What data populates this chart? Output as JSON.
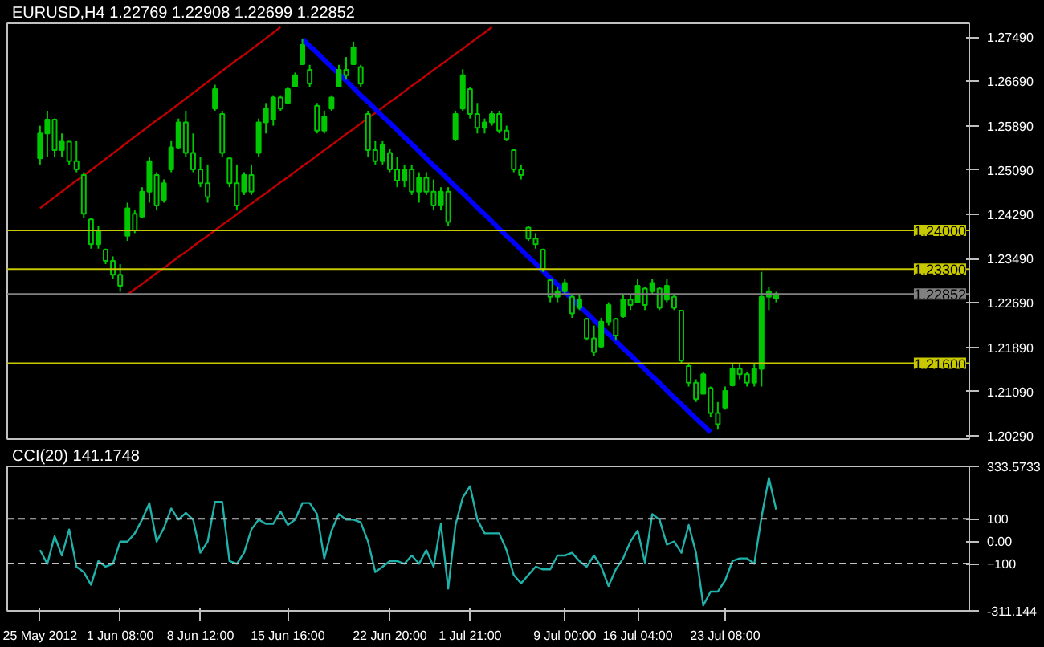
{
  "chart_data": [
    {
      "type": "candlestick",
      "title": "EURUSD,H4 1.22769 1.22908 1.22699 1.22852",
      "ylim": [
        1.2023,
        1.2774
      ],
      "tick_labels": "y",
      "grid": false,
      "categories": [
        null,
        null,
        null,
        null,
        null,
        null,
        null,
        null,
        null,
        null,
        null,
        null,
        null,
        null,
        null,
        null,
        null,
        null,
        null,
        null,
        null,
        null,
        null,
        null,
        null,
        null,
        null,
        null,
        null,
        null,
        null,
        null,
        null,
        null,
        null,
        null,
        null,
        null,
        null,
        null,
        null,
        null,
        null,
        null,
        null,
        null,
        null,
        null,
        null,
        null,
        null,
        null,
        null,
        null,
        null,
        null,
        null,
        null,
        null,
        null,
        null,
        null,
        null,
        null,
        null,
        null,
        null,
        null,
        null,
        null,
        null,
        null,
        null,
        null,
        null,
        null,
        null,
        null,
        null,
        null,
        null,
        null,
        null,
        null,
        null,
        null,
        null,
        null,
        null,
        null,
        null,
        null,
        null,
        null,
        null,
        null,
        null,
        null,
        null,
        null,
        null,
        null,
        null,
        null,
        null,
        null,
        null,
        null,
        null,
        null,
        null,
        null,
        null,
        null,
        null,
        null,
        null,
        null,
        null,
        null,
        null,
        null,
        null,
        null,
        null,
        null,
        null,
        null,
        null,
        null,
        null,
        null
      ],
      "yticks": [
        {
          "value": 1.2029,
          "label": "1.20290"
        },
        {
          "value": 1.2109,
          "label": "1.21090"
        },
        {
          "value": 1.2189,
          "label": "1.21890"
        },
        {
          "value": 1.2269,
          "label": "1.22690"
        },
        {
          "value": 1.2349,
          "label": "1.23490"
        },
        {
          "value": 1.2429,
          "label": "1.24290"
        },
        {
          "value": 1.2509,
          "label": "1.25090"
        },
        {
          "value": 1.2589,
          "label": "1.25890"
        },
        {
          "value": 1.2669,
          "label": "1.26690"
        },
        {
          "value": 1.2749,
          "label": "1.27490"
        }
      ],
      "ref_lines": [
        {
          "axis": "y",
          "value": 1.24,
          "label": "1.24000",
          "color": "#c8c800",
          "line_style": "solid"
        },
        {
          "axis": "y",
          "value": 1.233,
          "label": "1.23300",
          "color": "#c8c800",
          "line_style": "solid"
        },
        {
          "axis": "y",
          "value": 1.216,
          "label": "1.21600",
          "color": "#c8c800",
          "line_style": "solid"
        },
        {
          "axis": "y",
          "value": 1.22852,
          "label": "1.22852",
          "color": "#808080",
          "line_style": "solid"
        }
      ],
      "series": [
        {
          "type": "candlestick",
          "color": "#00c800",
          "ohlc": [
            null,
            null,
            null,
            null,
            [
              1.253,
              1.2589,
              1.2519,
              1.2575
            ],
            [
              1.2575,
              1.2616,
              1.2533,
              1.26
            ],
            [
              1.26,
              1.2602,
              1.2533,
              1.2545
            ],
            [
              1.2545,
              1.2575,
              1.2533,
              1.256
            ],
            [
              1.256,
              1.2561,
              1.2519,
              1.2525
            ],
            [
              1.2525,
              1.2561,
              1.2505,
              1.251
            ],
            [
              1.25,
              1.2505,
              1.2422,
              1.243
            ],
            [
              1.242,
              1.2422,
              1.2367,
              1.2375
            ],
            [
              1.2375,
              1.2408,
              1.2367,
              1.24
            ],
            [
              1.2365,
              1.2367,
              1.2339,
              1.2345
            ],
            [
              1.2345,
              1.2353,
              1.2312,
              1.232
            ],
            [
              1.232,
              1.2339,
              1.2289,
              1.23
            ],
            [
              1.239,
              1.245,
              1.2381,
              1.244
            ],
            [
              1.243,
              1.2436,
              1.2395,
              1.24
            ],
            [
              1.2425,
              1.2478,
              1.2422,
              1.247
            ],
            [
              1.247,
              1.2533,
              1.245,
              1.2525
            ],
            [
              1.25,
              1.2505,
              1.2436,
              1.2445
            ],
            [
              1.2455,
              1.2492,
              1.245,
              1.2485
            ],
            [
              1.251,
              1.2561,
              1.2505,
              1.255
            ],
            [
              1.255,
              1.2602,
              1.2547,
              1.2595
            ],
            [
              1.2595,
              1.2616,
              1.2533,
              1.254
            ],
            [
              1.254,
              1.2575,
              1.2505,
              1.251
            ],
            [
              1.251,
              1.2533,
              1.2478,
              1.2485
            ],
            [
              1.2485,
              1.2519,
              1.245,
              1.246
            ],
            [
              1.262,
              1.2663,
              1.2616,
              1.2655
            ],
            [
              1.261,
              1.2616,
              1.2533,
              1.254
            ],
            [
              1.253,
              1.2533,
              1.2478,
              1.2485
            ],
            [
              1.2485,
              1.2519,
              1.2436,
              1.2445
            ],
            [
              1.247,
              1.2505,
              1.2464,
              1.25
            ],
            [
              1.25,
              1.2519,
              1.2464,
              1.247
            ],
            [
              1.254,
              1.2602,
              1.2533,
              1.2595
            ],
            [
              1.2595,
              1.263,
              1.2575,
              1.262
            ],
            [
              1.26,
              1.2644,
              1.2589,
              1.264
            ],
            [
              1.264,
              1.2644,
              1.2616,
              1.262
            ],
            [
              1.263,
              1.2658,
              1.263,
              1.2655
            ],
            [
              1.266,
              1.2685,
              1.2658,
              1.268
            ],
            [
              1.27,
              1.2746,
              1.2699,
              1.2735
            ],
            [
              1.269,
              1.2699,
              1.2658,
              1.2665
            ],
            [
              1.2625,
              1.263,
              1.2575,
              1.258
            ],
            [
              1.258,
              1.2616,
              1.2575,
              1.2605
            ],
            [
              1.262,
              1.2644,
              1.2616,
              1.264
            ],
            [
              1.266,
              1.2699,
              1.2658,
              1.269
            ],
            [
              1.269,
              1.2713,
              1.2672,
              1.268
            ],
            [
              1.27,
              1.2741,
              1.2699,
              1.273
            ],
            [
              1.2695,
              1.2699,
              1.2658,
              1.2665
            ],
            [
              1.261,
              1.2616,
              1.2533,
              1.2545
            ],
            [
              1.2545,
              1.2561,
              1.2519,
              1.2525
            ],
            [
              1.2525,
              1.2561,
              1.2519,
              1.2555
            ],
            [
              1.254,
              1.2547,
              1.2505,
              1.251
            ],
            [
              1.251,
              1.2533,
              1.2478,
              1.249
            ],
            [
              1.249,
              1.2519,
              1.2478,
              1.251
            ],
            [
              1.251,
              1.2519,
              1.2464,
              1.247
            ],
            [
              1.247,
              1.2505,
              1.245,
              1.2495
            ],
            [
              1.2495,
              1.2505,
              1.2464,
              1.247
            ],
            [
              1.247,
              1.2492,
              1.2436,
              1.2445
            ],
            [
              1.2445,
              1.2478,
              1.2436,
              1.247
            ],
            [
              1.247,
              1.2478,
              1.2408,
              1.2415
            ],
            [
              1.2565,
              1.2616,
              1.2561,
              1.261
            ],
            [
              1.262,
              1.2691,
              1.2616,
              1.268
            ],
            [
              1.2655,
              1.2658,
              1.2602,
              1.261
            ],
            [
              1.261,
              1.263,
              1.2575,
              1.2585
            ],
            [
              1.2585,
              1.2602,
              1.2575,
              1.2595
            ],
            [
              1.2595,
              1.2616,
              1.2589,
              1.261
            ],
            [
              1.261,
              1.2616,
              1.2575,
              1.258
            ],
            [
              1.258,
              1.2589,
              1.2561,
              1.2565
            ],
            [
              1.2545,
              1.2547,
              1.2505,
              1.251
            ],
            [
              1.251,
              1.2519,
              1.2492,
              1.25
            ],
            [
              1.2405,
              1.2408,
              1.2381,
              1.2385
            ],
            [
              1.2385,
              1.2395,
              1.2367,
              1.2375
            ],
            [
              1.2365,
              1.2367,
              1.2325,
              1.233
            ],
            [
              1.231,
              1.2312,
              1.227,
              1.228
            ],
            [
              1.228,
              1.2298,
              1.227,
              1.229
            ],
            [
              1.229,
              1.2312,
              1.2284,
              1.2305
            ],
            [
              1.228,
              1.2284,
              1.2242,
              1.225
            ],
            [
              1.226,
              1.2284,
              1.2256,
              1.2275
            ],
            [
              1.224,
              1.2242,
              1.2201,
              1.2205
            ],
            [
              1.2205,
              1.2228,
              1.2173,
              1.218
            ],
            [
              1.219,
              1.2242,
              1.2187,
              1.2235
            ],
            [
              1.2235,
              1.227,
              1.2228,
              1.2265
            ],
            [
              1.224,
              1.2242,
              1.2201,
              1.221
            ],
            [
              1.2245,
              1.2284,
              1.2242,
              1.2275
            ],
            [
              1.2275,
              1.2284,
              1.2256,
              1.2265
            ],
            [
              1.227,
              1.2312,
              1.227,
              1.23
            ],
            [
              1.2295,
              1.2298,
              1.2256,
              1.2265
            ],
            [
              1.229,
              1.2312,
              1.2284,
              1.2305
            ],
            [
              1.2295,
              1.2298,
              1.2256,
              1.226
            ],
            [
              1.2275,
              1.2312,
              1.227,
              1.23
            ],
            [
              1.228,
              1.2284,
              1.2256,
              1.226
            ],
            [
              1.2255,
              1.2256,
              1.2159,
              1.2165
            ],
            [
              1.2155,
              1.2159,
              1.2118,
              1.2125
            ],
            [
              1.2125,
              1.2131,
              1.209,
              1.2095
            ],
            [
              1.2105,
              1.2145,
              1.2104,
              1.214
            ],
            [
              1.2115,
              1.2118,
              1.2062,
              1.207
            ],
            [
              1.207,
              1.209,
              1.204,
              1.205
            ],
            [
              1.208,
              1.2118,
              1.2076,
              1.211
            ],
            [
              1.212,
              1.2159,
              1.2118,
              1.215
            ],
            [
              1.215,
              1.2159,
              1.2131,
              1.214
            ],
            [
              1.214,
              1.2145,
              1.2118,
              1.2125
            ],
            [
              1.2125,
              1.2159,
              1.2118,
              1.215
            ],
            [
              1.215,
              1.2325,
              1.2118,
              1.228
            ],
            [
              1.228,
              1.2298,
              1.2256,
              1.229
            ],
            [
              1.2277,
              1.2289,
              1.227,
              1.2285
            ],
            null,
            null,
            null,
            null,
            null,
            null,
            null,
            null,
            null,
            null,
            null,
            null,
            null,
            null,
            null,
            null,
            null,
            null,
            null,
            null,
            null,
            null,
            null,
            null,
            null,
            null
          ]
        },
        {
          "type": "line",
          "color": "#c00000",
          "line_style": "solid",
          "values": [
            null,
            null,
            null,
            null,
            1.244,
            1.245,
            1.246,
            1.247,
            1.248,
            1.249,
            1.2499,
            1.2509,
            1.2519,
            1.2529,
            1.2539,
            1.2549,
            1.2559,
            1.2569,
            1.2579,
            1.2589,
            1.2599,
            1.2608,
            1.2618,
            1.2628,
            1.2638,
            1.2648,
            1.2658,
            1.2668,
            1.2678,
            1.2688,
            1.2698,
            1.2708,
            1.2717,
            1.2727,
            1.2737,
            1.2747,
            1.2757,
            1.2767,
            null,
            null,
            null,
            null,
            null,
            null,
            null,
            null,
            null,
            null,
            null,
            null,
            null,
            null,
            null,
            null,
            null,
            null,
            null,
            null,
            null,
            null,
            null,
            null,
            null,
            null,
            null,
            null,
            null,
            null,
            null,
            null,
            null,
            null,
            null,
            null,
            null,
            null,
            null,
            null,
            null,
            null,
            null,
            null,
            null,
            null,
            null,
            null,
            null,
            null,
            null,
            null,
            null,
            null,
            null,
            null,
            null,
            null,
            null,
            null,
            null,
            null,
            null,
            null,
            null,
            null,
            null,
            null,
            null,
            null,
            null,
            null,
            null,
            null,
            null,
            null,
            null,
            null,
            null,
            null,
            null,
            null,
            null,
            null,
            null,
            null,
            null,
            null,
            null,
            null,
            null,
            null,
            null,
            null
          ]
        },
        {
          "type": "line",
          "color": "#c00000",
          "line_style": "solid",
          "values": [
            null,
            null,
            null,
            null,
            null,
            null,
            null,
            null,
            null,
            null,
            null,
            null,
            null,
            null,
            null,
            null,
            1.2284,
            1.2294,
            1.2303,
            1.2313,
            1.2323,
            1.2332,
            1.2342,
            1.2352,
            1.2361,
            1.2371,
            1.2381,
            1.239,
            1.24,
            1.241,
            1.2419,
            1.2429,
            1.2439,
            1.2448,
            1.2458,
            1.2467,
            1.2477,
            1.2487,
            1.2496,
            1.2506,
            1.2516,
            1.2525,
            1.2535,
            1.2545,
            1.2554,
            1.2564,
            1.2574,
            1.2583,
            1.2593,
            1.2603,
            1.2612,
            1.2622,
            1.2632,
            1.2641,
            1.2651,
            1.2661,
            1.267,
            1.268,
            1.269,
            1.2699,
            1.2709,
            1.2719,
            1.2728,
            1.2738,
            1.2748,
            1.2757,
            1.2767,
            null,
            null,
            null,
            null,
            null,
            null,
            null,
            null,
            null,
            null,
            null,
            null,
            null,
            null,
            null,
            null,
            null,
            null,
            null,
            null,
            null,
            null,
            null,
            null,
            null,
            null,
            null,
            null,
            null,
            null,
            null,
            null,
            null,
            null,
            null,
            null,
            null,
            null,
            null,
            null,
            null,
            null,
            null,
            null,
            null,
            null,
            null,
            null,
            null,
            null,
            null,
            null,
            null,
            null,
            null,
            null,
            null,
            null,
            null,
            null,
            null,
            null,
            null,
            null,
            null
          ]
        },
        {
          "type": "line",
          "color": "#0000ff",
          "line_style": "solid",
          "values": [
            null,
            null,
            null,
            null,
            null,
            null,
            null,
            null,
            null,
            null,
            null,
            null,
            null,
            null,
            null,
            null,
            null,
            null,
            null,
            null,
            null,
            null,
            null,
            null,
            null,
            null,
            null,
            null,
            null,
            null,
            null,
            null,
            null,
            null,
            null,
            null,
            null,
            null,
            null,
            null,
            1.2746,
            1.2733,
            1.2721,
            1.2708,
            1.2695,
            1.2683,
            1.267,
            1.2657,
            1.2644,
            1.2632,
            1.2619,
            1.2606,
            1.2594,
            1.2581,
            1.2568,
            1.2556,
            1.2543,
            1.253,
            1.2517,
            1.2505,
            1.2492,
            1.2479,
            1.2467,
            1.2454,
            1.2441,
            1.2429,
            1.2416,
            1.2403,
            1.239,
            1.2378,
            1.2365,
            1.2352,
            1.234,
            1.2327,
            1.2314,
            1.2302,
            1.2289,
            1.2276,
            1.2263,
            1.2251,
            1.2238,
            1.2225,
            1.2213,
            1.22,
            1.2187,
            1.2175,
            1.2162,
            1.2149,
            1.2136,
            1.2124,
            1.2111,
            1.2098,
            1.2086,
            1.2073,
            1.206,
            1.2048,
            1.2035,
            null,
            null,
            null,
            null,
            null,
            null,
            null,
            null,
            null,
            null,
            null,
            null,
            null,
            null,
            null,
            null,
            null,
            null,
            null,
            null,
            null,
            null,
            null,
            null,
            null,
            null,
            null,
            null,
            null,
            null,
            null,
            null,
            null,
            null,
            null
          ]
        }
      ]
    },
    {
      "type": "line",
      "title": "CCI(20) 141.1748",
      "ylim": [
        -311.144,
        333.5733
      ],
      "grid": false,
      "categories": [
        null,
        null,
        null,
        null,
        "25 May 2012",
        null,
        null,
        null,
        null,
        null,
        null,
        null,
        null,
        null,
        null,
        "1 Jun 08:00",
        null,
        null,
        null,
        null,
        null,
        null,
        null,
        null,
        null,
        null,
        "8 Jun 12:00",
        null,
        null,
        null,
        null,
        null,
        null,
        null,
        null,
        null,
        null,
        null,
        "15 Jun 16:00",
        null,
        null,
        null,
        null,
        null,
        null,
        null,
        null,
        null,
        null,
        null,
        null,
        null,
        "22 Jun 20:00",
        null,
        null,
        null,
        null,
        null,
        null,
        null,
        null,
        null,
        null,
        "1 Jul 21:00",
        null,
        null,
        null,
        null,
        null,
        null,
        null,
        null,
        null,
        null,
        null,
        null,
        "9 Jul 00:00",
        null,
        null,
        null,
        null,
        null,
        null,
        null,
        null,
        null,
        "16 Jul 04:00",
        null,
        null,
        null,
        null,
        null,
        null,
        null,
        null,
        null,
        null,
        null,
        "23 Jul 08:00",
        null,
        null,
        null,
        null,
        null,
        null,
        null,
        null,
        null,
        null,
        null,
        null,
        null,
        null,
        null,
        null,
        null,
        null,
        null,
        null,
        null,
        null,
        null,
        null,
        null,
        null,
        null,
        null,
        null,
        null,
        null,
        null,
        null
      ],
      "yticks": [
        {
          "value": -311.144,
          "label": "-311.144"
        },
        -100,
        {
          "value": 0,
          "label": "0.00"
        },
        100,
        {
          "value": 333.5733,
          "label": "333.5733"
        }
      ],
      "ref_lines": [
        {
          "axis": "y",
          "value": 100,
          "color": "#c0c0c0",
          "line_style": "dashed"
        },
        {
          "axis": "y",
          "value": -100,
          "color": "#c0c0c0",
          "line_style": "dashed"
        }
      ],
      "series": [
        {
          "color": "#20b2aa",
          "line_style": "solid",
          "values": [
            null,
            null,
            null,
            null,
            -40,
            -101,
            22,
            -64,
            52,
            -114,
            -138,
            -195,
            -89,
            -114,
            -101,
            -2,
            -2,
            35,
            96,
            170,
            -2,
            59,
            146,
            96,
            126,
            96,
            -52,
            -2,
            175,
            175,
            -89,
            -101,
            -52,
            52,
            96,
            77,
            77,
            133,
            72,
            96,
            170,
            170,
            121,
            -77,
            47,
            121,
            96,
            96,
            84,
            -2,
            -138,
            -114,
            -89,
            -89,
            -101,
            -64,
            -101,
            -40,
            -114,
            77,
            -212,
            72,
            195,
            245,
            96,
            35,
            35,
            35,
            -40,
            -151,
            -188,
            -151,
            -114,
            -126,
            -126,
            -64,
            -64,
            -52,
            -89,
            -114,
            -64,
            -114,
            -200,
            -126,
            -77,
            -2,
            47,
            -96,
            121,
            96,
            -15,
            -2,
            -52,
            72,
            -52,
            -287,
            -225,
            -225,
            -175,
            -89,
            -77,
            -77,
            -101,
            109,
            282,
            141,
            null,
            null,
            null,
            null,
            null,
            null,
            null,
            null,
            null,
            null,
            null,
            null,
            null,
            null,
            null,
            null,
            null,
            null,
            null,
            null,
            null,
            null,
            null,
            null,
            null,
            null
          ]
        }
      ]
    }
  ]
}
